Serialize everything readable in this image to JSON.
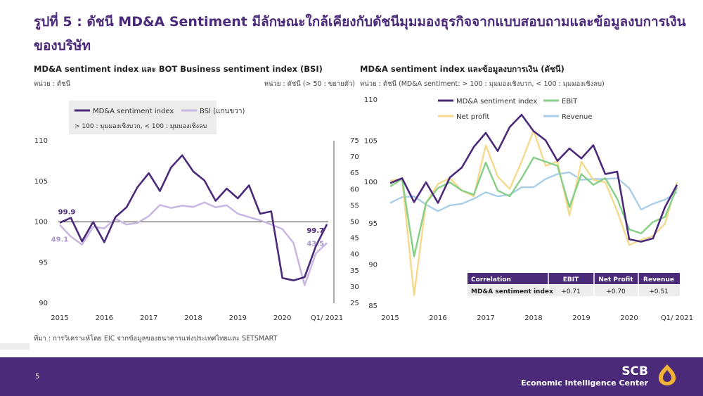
{
  "page": {
    "title": "รูปที่ 5 : ดัชนี MD&A Sentiment มีลักษณะใกล้เคียงกับดัชนีมุมมองธุรกิจจากแบบสอบถามและข้อมูลงบการเงินของบริษัท",
    "source": "ที่มา : การวิเคราะห์โดย EIC จากข้อมูลของธนาคารแห่งประเทศไทยและ SETSMART",
    "page_number": "5",
    "brand": "SCB",
    "brand_sub": "Economic Intelligence Center",
    "colors": {
      "purple": "#4b2a7a",
      "lilac": "#c9b9e2",
      "green": "#86cf86",
      "yellow": "#f5d98c",
      "blue": "#a9cfe8"
    }
  },
  "left": {
    "subtitle": "MD&A sentiment index และ BOT Business sentiment index (BSI)",
    "unit_left": "หน่วย : ดัชนี",
    "unit_right": "หน่วย : ดัชนี (> 50 : ขยายตัว)",
    "legend_note": "> 100 : มุมมองเชิงบวก, < 100 : มุมมองเชิงลบ"
  },
  "right": {
    "subtitle": "MD&A sentiment index และข้อมูลงบการเงิน (ดัชนี)",
    "unit": "หน่วย : ดัชนี (MD&A sentiment: > 100 : มุมมองเชิงบวก, < 100 : มุมมองเชิงลบ)",
    "table": {
      "headers": [
        "Correlation",
        "EBIT",
        "Net Profit",
        "Revenue"
      ],
      "row": [
        "MD&A sentiment index",
        "+0.71",
        "+0.70",
        "+0.51"
      ]
    }
  },
  "chart_data": [
    {
      "type": "line",
      "x": [
        "2015Q1",
        "2015Q2",
        "2015Q3",
        "2015Q4",
        "2016Q1",
        "2016Q2",
        "2016Q3",
        "2016Q4",
        "2017Q1",
        "2017Q2",
        "2017Q3",
        "2017Q4",
        "2018Q1",
        "2018Q2",
        "2018Q3",
        "2018Q4",
        "2019Q1",
        "2019Q2",
        "2019Q3",
        "2019Q4",
        "2020Q1",
        "2020Q2",
        "2020Q3",
        "2020Q4",
        "2021Q1"
      ],
      "x_tick_labels": [
        "2015",
        "2016",
        "2017",
        "2018",
        "2019",
        "2020",
        "Q1/ 2021"
      ],
      "series": [
        {
          "name": "MD&A sentiment index",
          "axis": "left",
          "values": [
            99.9,
            100.5,
            97.6,
            100.0,
            97.5,
            100.6,
            101.8,
            104.3,
            106.0,
            103.8,
            106.7,
            108.2,
            106.2,
            105.1,
            102.6,
            104.1,
            102.9,
            104.5,
            101.0,
            101.3,
            93.1,
            92.8,
            93.2,
            97.0,
            99.7
          ]
        },
        {
          "name": "BSI (แกนขวา)",
          "axis": "right",
          "values": [
            49.1,
            45.5,
            43.0,
            48.5,
            48.0,
            51.0,
            49.2,
            49.7,
            51.8,
            55.2,
            54.3,
            55.0,
            54.6,
            56.0,
            54.5,
            55.1,
            52.5,
            51.5,
            50.5,
            49.2,
            47.8,
            43.5,
            30.5,
            40.3,
            43.5
          ]
        }
      ],
      "point_labels": [
        {
          "series": "MD&A sentiment index",
          "x": "2015Q1",
          "text": "99.9"
        },
        {
          "series": "BSI (แกนขวา)",
          "x": "2015Q1",
          "text": "49.1"
        },
        {
          "series": "MD&A sentiment index",
          "x": "2021Q1",
          "text": "99.7"
        },
        {
          "series": "BSI (แกนขวา)",
          "x": "2021Q1",
          "text": "43.5"
        }
      ],
      "reference_line": 100,
      "ylim": [
        90,
        110
      ],
      "yticks": [
        90,
        95,
        100,
        105,
        110
      ],
      "y2lim": [
        25,
        75
      ],
      "y2ticks": [
        25,
        30,
        35,
        40,
        45,
        50,
        55,
        60,
        65,
        70,
        75
      ],
      "legend_placement": "top-left"
    },
    {
      "type": "line",
      "x": [
        "2015Q1",
        "2015Q2",
        "2015Q3",
        "2015Q4",
        "2016Q1",
        "2016Q2",
        "2016Q3",
        "2016Q4",
        "2017Q1",
        "2017Q2",
        "2017Q3",
        "2017Q4",
        "2018Q1",
        "2018Q2",
        "2018Q3",
        "2018Q4",
        "2019Q1",
        "2019Q2",
        "2019Q3",
        "2019Q4",
        "2020Q1",
        "2020Q2",
        "2020Q3",
        "2020Q4",
        "2021Q1"
      ],
      "x_tick_labels": [
        "2015",
        "2016",
        "2017",
        "2018",
        "2019",
        "2020",
        "Q1/ 2021"
      ],
      "series": [
        {
          "name": "MD&A sentiment index",
          "values": [
            99.9,
            100.5,
            97.6,
            100.0,
            97.5,
            100.6,
            101.8,
            104.3,
            106.0,
            103.8,
            106.7,
            108.2,
            106.2,
            105.1,
            102.6,
            104.1,
            102.9,
            104.5,
            101.0,
            101.3,
            93.1,
            92.8,
            93.2,
            97.0,
            99.7
          ]
        },
        {
          "name": "EBIT",
          "values": [
            99.5,
            100.4,
            91.0,
            97.5,
            99.3,
            100.0,
            99.0,
            98.5,
            102.4,
            99.0,
            98.3,
            100.5,
            103.0,
            102.5,
            102.0,
            97.0,
            101.0,
            99.7,
            100.5,
            98.0,
            94.3,
            93.8,
            95.2,
            95.8,
            99.4
          ]
        },
        {
          "name": "Net profit",
          "values": [
            100.2,
            100.4,
            86.3,
            97.5,
            99.8,
            100.5,
            99.0,
            98.3,
            104.5,
            100.7,
            99.2,
            102.5,
            106.3,
            102.0,
            102.5,
            96.0,
            102.5,
            100.3,
            100.0,
            96.5,
            92.4,
            93.0,
            93.5,
            95.0,
            100.0
          ]
        },
        {
          "name": "Revenue",
          "values": [
            97.5,
            98.2,
            98.3,
            97.3,
            96.5,
            97.2,
            97.4,
            98.0,
            98.8,
            98.3,
            98.5,
            99.4,
            99.4,
            100.4,
            101.0,
            101.2,
            100.3,
            100.4,
            100.4,
            100.5,
            99.3,
            96.7,
            97.4,
            97.9,
            98.8
          ]
        }
      ],
      "ylim": [
        85,
        110
      ],
      "yticks": [
        85,
        90,
        95,
        100,
        105,
        110
      ],
      "legend_placement": "top"
    }
  ]
}
